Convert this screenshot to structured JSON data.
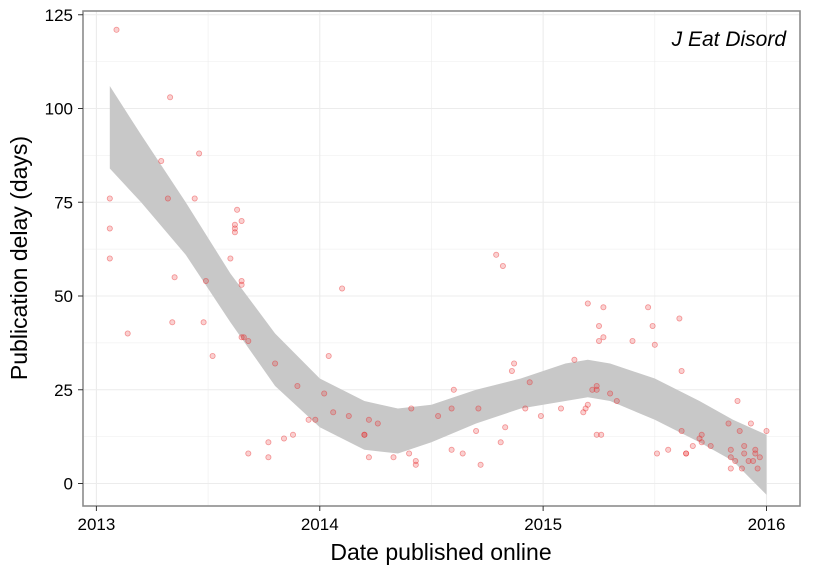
{
  "chart_data": {
    "type": "scatter",
    "title": "",
    "annotation": "J Eat Disord",
    "xlabel": "Date published online",
    "ylabel": "Publication delay (days)",
    "xlim": [
      2012.94,
      2016.15
    ],
    "ylim": [
      -6,
      126
    ],
    "x_ticks": [
      2013,
      2014,
      2015,
      2016
    ],
    "y_ticks": [
      0,
      25,
      50,
      75,
      100,
      125
    ],
    "grid": true,
    "colors": {
      "points": "#e8282a",
      "ribbon": "#c8c8c8",
      "grid": "#ececec",
      "frame": "#8c8c8c"
    },
    "points": [
      [
        2013.06,
        76
      ],
      [
        2013.06,
        68
      ],
      [
        2013.06,
        60
      ],
      [
        2013.09,
        121
      ],
      [
        2013.14,
        40
      ],
      [
        2013.29,
        86
      ],
      [
        2013.32,
        76
      ],
      [
        2013.33,
        103
      ],
      [
        2013.34,
        43
      ],
      [
        2013.35,
        55
      ],
      [
        2013.44,
        76
      ],
      [
        2013.46,
        88
      ],
      [
        2013.48,
        43
      ],
      [
        2013.49,
        54
      ],
      [
        2013.52,
        34
      ],
      [
        2013.6,
        60
      ],
      [
        2013.62,
        69
      ],
      [
        2013.62,
        68
      ],
      [
        2013.62,
        67
      ],
      [
        2013.63,
        73
      ],
      [
        2013.65,
        70
      ],
      [
        2013.65,
        54
      ],
      [
        2013.65,
        53
      ],
      [
        2013.65,
        39
      ],
      [
        2013.66,
        39
      ],
      [
        2013.68,
        38
      ],
      [
        2013.68,
        8
      ],
      [
        2013.77,
        11
      ],
      [
        2013.77,
        7
      ],
      [
        2013.8,
        32
      ],
      [
        2013.84,
        12
      ],
      [
        2013.88,
        13
      ],
      [
        2013.9,
        26
      ],
      [
        2013.95,
        17
      ],
      [
        2013.98,
        17
      ],
      [
        2014.02,
        24
      ],
      [
        2014.04,
        34
      ],
      [
        2014.06,
        19
      ],
      [
        2014.1,
        52
      ],
      [
        2014.13,
        18
      ],
      [
        2014.2,
        13
      ],
      [
        2014.2,
        13
      ],
      [
        2014.22,
        7
      ],
      [
        2014.22,
        17
      ],
      [
        2014.26,
        16
      ],
      [
        2014.33,
        7
      ],
      [
        2014.4,
        8
      ],
      [
        2014.41,
        20
      ],
      [
        2014.43,
        5
      ],
      [
        2014.43,
        6
      ],
      [
        2014.53,
        18
      ],
      [
        2014.59,
        9
      ],
      [
        2014.59,
        20
      ],
      [
        2014.6,
        25
      ],
      [
        2014.64,
        8
      ],
      [
        2014.7,
        14
      ],
      [
        2014.71,
        20
      ],
      [
        2014.72,
        5
      ],
      [
        2014.79,
        61
      ],
      [
        2014.81,
        11
      ],
      [
        2014.82,
        58
      ],
      [
        2014.83,
        15
      ],
      [
        2014.86,
        30
      ],
      [
        2014.87,
        32
      ],
      [
        2014.92,
        20
      ],
      [
        2014.94,
        27
      ],
      [
        2014.99,
        18
      ],
      [
        2015.08,
        20
      ],
      [
        2015.14,
        33
      ],
      [
        2015.18,
        19
      ],
      [
        2015.19,
        20
      ],
      [
        2015.2,
        48
      ],
      [
        2015.2,
        21
      ],
      [
        2015.22,
        25
      ],
      [
        2015.24,
        13
      ],
      [
        2015.24,
        26
      ],
      [
        2015.24,
        25
      ],
      [
        2015.25,
        42
      ],
      [
        2015.25,
        38
      ],
      [
        2015.26,
        13
      ],
      [
        2015.27,
        47
      ],
      [
        2015.27,
        39
      ],
      [
        2015.3,
        24
      ],
      [
        2015.33,
        22
      ],
      [
        2015.4,
        38
      ],
      [
        2015.47,
        47
      ],
      [
        2015.49,
        42
      ],
      [
        2015.5,
        37
      ],
      [
        2015.51,
        8
      ],
      [
        2015.56,
        9
      ],
      [
        2015.61,
        44
      ],
      [
        2015.62,
        30
      ],
      [
        2015.62,
        14
      ],
      [
        2015.64,
        8
      ],
      [
        2015.64,
        8
      ],
      [
        2015.67,
        10
      ],
      [
        2015.7,
        12
      ],
      [
        2015.71,
        13
      ],
      [
        2015.71,
        11
      ],
      [
        2015.75,
        10
      ],
      [
        2015.83,
        16
      ],
      [
        2015.84,
        9
      ],
      [
        2015.84,
        7
      ],
      [
        2015.84,
        4
      ],
      [
        2015.86,
        6
      ],
      [
        2015.87,
        22
      ],
      [
        2015.88,
        14
      ],
      [
        2015.89,
        4
      ],
      [
        2015.9,
        10
      ],
      [
        2015.9,
        8
      ],
      [
        2015.92,
        6
      ],
      [
        2015.93,
        16
      ],
      [
        2015.94,
        6
      ],
      [
        2015.95,
        9
      ],
      [
        2015.95,
        8
      ],
      [
        2015.96,
        4
      ],
      [
        2015.97,
        7
      ],
      [
        2016.0,
        14
      ]
    ],
    "smooth": {
      "x": [
        2013.06,
        2013.2,
        2013.4,
        2013.6,
        2013.8,
        2014.0,
        2014.2,
        2014.35,
        2014.5,
        2014.7,
        2014.9,
        2015.1,
        2015.2,
        2015.3,
        2015.5,
        2015.7,
        2015.85,
        2016.0
      ],
      "upper": [
        106,
        93,
        75,
        56,
        40,
        28,
        22,
        20,
        21,
        25,
        28,
        32,
        33,
        32,
        28,
        22,
        17,
        13
      ],
      "lower": [
        84,
        75,
        61,
        43,
        26,
        15,
        9,
        8,
        11,
        16,
        20,
        22,
        23,
        22,
        17,
        11,
        6,
        -3
      ]
    }
  }
}
